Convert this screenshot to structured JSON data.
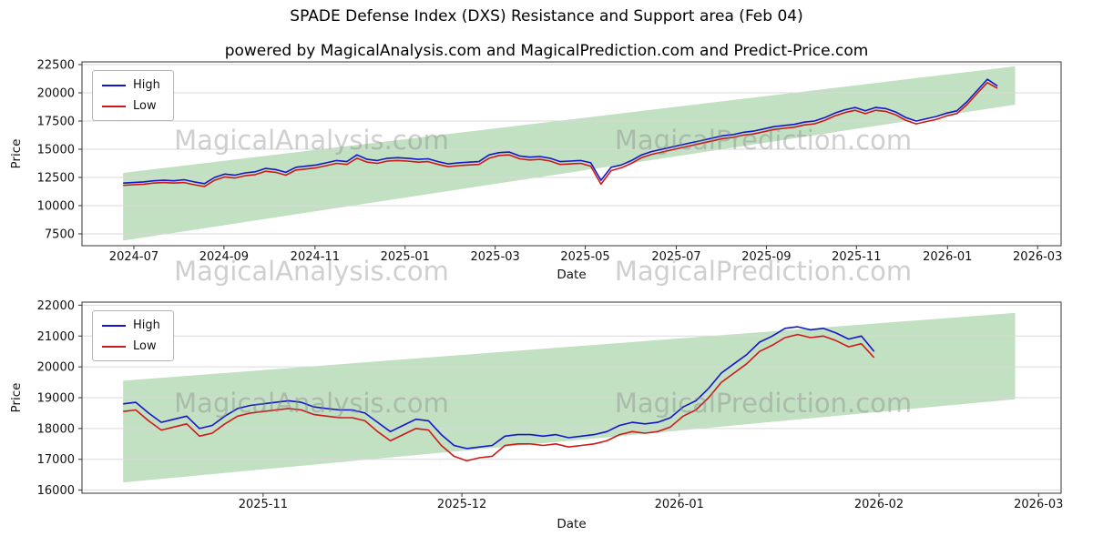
{
  "page": {
    "title": "SPADE Defense Index (DXS) Resistance and Support area (Feb 04)",
    "subtitle": "powered by MagicalAnalysis.com and MagicalPrediction.com and Predict-Price.com"
  },
  "watermarks": {
    "left_text": "MagicalAnalysis.com",
    "right_text": "MagicalPrediction.com"
  },
  "chart_data": [
    {
      "type": "line",
      "title": "",
      "xlabel": "Date",
      "ylabel": "Price",
      "legend_position": "upper-left",
      "grid": "horizontal",
      "ylim": [
        6450,
        22740
      ],
      "yticks": [
        7500,
        10000,
        12500,
        15000,
        17500,
        20000,
        22500
      ],
      "xticks": [
        {
          "label": "2024-07",
          "pos": 0.053
        },
        {
          "label": "2024-09",
          "pos": 0.145
        },
        {
          "label": "2024-11",
          "pos": 0.238
        },
        {
          "label": "2025-01",
          "pos": 0.33
        },
        {
          "label": "2025-03",
          "pos": 0.422
        },
        {
          "label": "2025-05",
          "pos": 0.514
        },
        {
          "label": "2025-07",
          "pos": 0.607
        },
        {
          "label": "2025-09",
          "pos": 0.699
        },
        {
          "label": "2025-11",
          "pos": 0.791
        },
        {
          "label": "2026-01",
          "pos": 0.884
        },
        {
          "label": "2026-03",
          "pos": 0.976
        }
      ],
      "x_start": 0.042,
      "x_end": 0.935,
      "series": [
        {
          "name": "High",
          "color": "#1515cc",
          "values": [
            12000,
            12050,
            12100,
            12200,
            12250,
            12200,
            12300,
            12100,
            11950,
            12500,
            12800,
            12700,
            12900,
            13000,
            13300,
            13200,
            12950,
            13400,
            13500,
            13600,
            13800,
            14000,
            13900,
            14500,
            14100,
            14000,
            14200,
            14250,
            14200,
            14100,
            14150,
            13900,
            13700,
            13800,
            13850,
            13900,
            14500,
            14700,
            14750,
            14400,
            14300,
            14350,
            14200,
            13900,
            13950,
            14000,
            13800,
            12250,
            13400,
            13600,
            14000,
            14500,
            14800,
            15000,
            15200,
            15400,
            15600,
            15800,
            16000,
            16200,
            16300,
            16500,
            16600,
            16800,
            17000,
            17100,
            17200,
            17400,
            17500,
            17800,
            18200,
            18500,
            18700,
            18400,
            18700,
            18600,
            18300,
            17800,
            17500,
            17700,
            17900,
            18200,
            18400,
            19200,
            20200,
            21200,
            20600
          ]
        },
        {
          "name": "Low",
          "color": "#cc1a1a",
          "values": [
            11800,
            11850,
            11900,
            12000,
            12050,
            12000,
            12050,
            11850,
            11700,
            12250,
            12550,
            12450,
            12650,
            12750,
            13050,
            12950,
            12700,
            13150,
            13250,
            13350,
            13550,
            13750,
            13650,
            14200,
            13850,
            13750,
            13950,
            14000,
            13950,
            13850,
            13900,
            13650,
            13450,
            13550,
            13600,
            13650,
            14200,
            14450,
            14500,
            14150,
            14050,
            14100,
            13950,
            13650,
            13700,
            13750,
            13500,
            11900,
            13100,
            13350,
            13750,
            14250,
            14550,
            14750,
            14950,
            15150,
            15350,
            15550,
            15750,
            15950,
            16050,
            16250,
            16350,
            16550,
            16750,
            16850,
            16950,
            17150,
            17250,
            17550,
            17950,
            18250,
            18450,
            18150,
            18450,
            18350,
            18050,
            17550,
            17250,
            17450,
            17650,
            17950,
            18150,
            18950,
            19950,
            20900,
            20400
          ]
        }
      ],
      "band": {
        "label": "resistance-support-area",
        "color": "rgba(110,180,110,0.42)",
        "x": [
          0.042,
          0.953
        ],
        "top": [
          12900,
          22350
        ],
        "bottom": [
          6900,
          18950
        ]
      }
    },
    {
      "type": "line",
      "title": "",
      "xlabel": "Date",
      "ylabel": "Price",
      "legend_position": "upper-left",
      "grid": "horizontal",
      "ylim": [
        15900,
        22100
      ],
      "yticks": [
        16000,
        17000,
        18000,
        19000,
        20000,
        21000,
        22000
      ],
      "xticks": [
        {
          "label": "2025-11",
          "pos": 0.185
        },
        {
          "label": "2025-12",
          "pos": 0.388
        },
        {
          "label": "2026-01",
          "pos": 0.61
        },
        {
          "label": "2026-02",
          "pos": 0.814
        },
        {
          "label": "2026-03",
          "pos": 0.977
        }
      ],
      "x_start": 0.042,
      "x_end": 0.809,
      "series": [
        {
          "name": "High",
          "color": "#1515cc",
          "values": [
            18800,
            18850,
            18500,
            18200,
            18300,
            18400,
            18000,
            18100,
            18400,
            18650,
            18750,
            18800,
            18850,
            18900,
            18850,
            18700,
            18650,
            18600,
            18600,
            18500,
            18200,
            17900,
            18100,
            18300,
            18250,
            17800,
            17450,
            17350,
            17400,
            17450,
            17750,
            17800,
            17800,
            17750,
            17800,
            17700,
            17750,
            17800,
            17900,
            18100,
            18200,
            18150,
            18200,
            18350,
            18700,
            18900,
            19300,
            19800,
            20100,
            20400,
            20800,
            21000,
            21250,
            21300,
            21200,
            21250,
            21100,
            20900,
            21000,
            20500
          ]
        },
        {
          "name": "Low",
          "color": "#cc1a1a",
          "values": [
            18550,
            18600,
            18250,
            17950,
            18050,
            18150,
            17750,
            17850,
            18150,
            18400,
            18500,
            18550,
            18600,
            18650,
            18600,
            18450,
            18400,
            18350,
            18350,
            18250,
            17900,
            17600,
            17800,
            18000,
            17950,
            17450,
            17100,
            16950,
            17050,
            17100,
            17450,
            17500,
            17500,
            17450,
            17500,
            17400,
            17450,
            17500,
            17600,
            17800,
            17900,
            17850,
            17900,
            18050,
            18400,
            18600,
            19000,
            19500,
            19800,
            20100,
            20500,
            20700,
            20950,
            21050,
            20950,
            21000,
            20850,
            20650,
            20750,
            20300
          ]
        }
      ],
      "band": {
        "label": "resistance-support-area",
        "color": "rgba(110,180,110,0.42)",
        "x": [
          0.042,
          0.953
        ],
        "top": [
          19550,
          21750
        ],
        "bottom": [
          16250,
          18950
        ]
      }
    }
  ]
}
